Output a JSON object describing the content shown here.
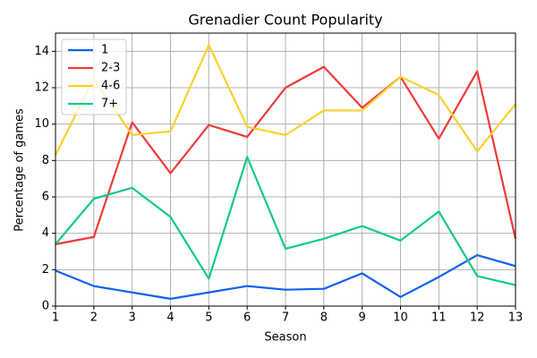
{
  "chart_data": {
    "type": "line",
    "title": "Grenadier Count Popularity",
    "x_label": "Season",
    "y_label": "Percentage of games",
    "x": [
      1,
      2,
      3,
      4,
      5,
      6,
      7,
      8,
      9,
      10,
      11,
      12,
      13
    ],
    "series": [
      {
        "name": "1",
        "color": "#0f62f0",
        "values": [
          1.95,
          1.1,
          0.75,
          0.4,
          0.75,
          1.1,
          0.9,
          0.95,
          1.8,
          0.5,
          1.6,
          2.8,
          2.2
        ]
      },
      {
        "name": "2-3",
        "color": "#f03a3a",
        "values": [
          3.4,
          3.8,
          10.1,
          7.3,
          9.95,
          9.3,
          12.0,
          13.15,
          10.9,
          12.6,
          9.2,
          12.9,
          3.7
        ]
      },
      {
        "name": "4-6",
        "color": "#fad12c",
        "values": [
          8.3,
          12.5,
          9.4,
          9.6,
          14.35,
          9.85,
          9.4,
          10.75,
          10.75,
          12.6,
          11.6,
          8.5,
          11.1
        ]
      },
      {
        "name": "7+",
        "color": "#12c990",
        "values": [
          3.4,
          5.9,
          6.5,
          4.9,
          1.5,
          8.2,
          3.15,
          3.7,
          4.4,
          3.6,
          5.2,
          1.65,
          1.15
        ]
      }
    ],
    "xlim": [
      1,
      13
    ],
    "xticks": [
      1,
      2,
      3,
      4,
      5,
      6,
      7,
      8,
      9,
      10,
      11,
      12,
      13
    ],
    "ylim": [
      0,
      15
    ],
    "yticks": [
      0,
      2,
      4,
      6,
      8,
      10,
      12,
      14
    ],
    "grid": true,
    "legend": "upper left"
  }
}
